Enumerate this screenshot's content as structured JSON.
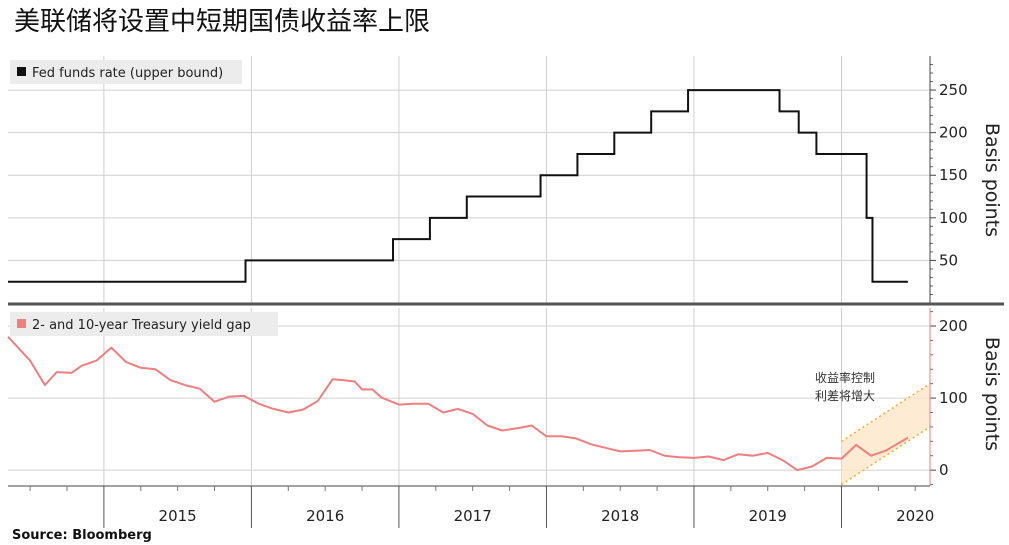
{
  "title": "美联储将设置中短期国债收益率上限",
  "source": "Source:  Bloomberg",
  "colors": {
    "fed_line": "#111111",
    "gap_line": "#f07f7f",
    "band_fill": "#fde7c8",
    "band_edge": "#f0b030",
    "legend_bg": "#ececec"
  },
  "chart_data": [
    {
      "type": "line",
      "ylabel": "Basis points",
      "ylim": [
        0,
        290
      ],
      "yticks": [
        50,
        100,
        150,
        200,
        250
      ],
      "xlim": [
        2014.35,
        2020.6
      ],
      "grid": true,
      "legend": "top-left",
      "series": [
        {
          "name": "Fed funds rate (upper bound)",
          "step": true,
          "x": [
            2014.35,
            2015.96,
            2016.96,
            2017.21,
            2017.46,
            2017.96,
            2018.21,
            2018.46,
            2018.71,
            2018.96,
            2019.58,
            2019.71,
            2019.83,
            2020.17,
            2020.21,
            2020.45
          ],
          "values": [
            25,
            50,
            75,
            100,
            125,
            150,
            175,
            200,
            225,
            250,
            225,
            200,
            175,
            100,
            25,
            25
          ]
        }
      ]
    },
    {
      "type": "line",
      "ylabel": "Basis points",
      "ylim": [
        -22,
        225
      ],
      "yticks": [
        0,
        100,
        200
      ],
      "xlim": [
        2014.35,
        2020.6
      ],
      "xticks": [
        "2015",
        "2016",
        "2017",
        "2018",
        "2019",
        "2020"
      ],
      "grid": true,
      "legend": "top-left",
      "annotation": [
        "收益率控制",
        "利差将增大"
      ],
      "projection_band": {
        "x": [
          2020.0,
          2020.6
        ],
        "lower": [
          -20,
          60
        ],
        "upper": [
          40,
          120
        ]
      },
      "series": [
        {
          "name": "2- and 10-year Treasury yield gap",
          "x": [
            2014.35,
            2014.5,
            2014.6,
            2014.68,
            2014.78,
            2014.85,
            2014.95,
            2015.05,
            2015.15,
            2015.25,
            2015.35,
            2015.45,
            2015.55,
            2015.65,
            2015.75,
            2015.85,
            2015.95,
            2016.05,
            2016.15,
            2016.25,
            2016.35,
            2016.45,
            2016.55,
            2016.62,
            2016.7,
            2016.75,
            2016.82,
            2016.88,
            2017.0,
            2017.1,
            2017.2,
            2017.3,
            2017.4,
            2017.5,
            2017.6,
            2017.7,
            2017.8,
            2017.9,
            2018.0,
            2018.1,
            2018.2,
            2018.3,
            2018.4,
            2018.5,
            2018.6,
            2018.7,
            2018.8,
            2018.9,
            2019.0,
            2019.1,
            2019.2,
            2019.3,
            2019.4,
            2019.5,
            2019.6,
            2019.7,
            2019.8,
            2019.9,
            2020.0,
            2020.1,
            2020.2,
            2020.3,
            2020.45
          ],
          "values": [
            185,
            152,
            118,
            136,
            135,
            145,
            152,
            170,
            150,
            142,
            140,
            125,
            118,
            113,
            95,
            102,
            103,
            92,
            85,
            80,
            84,
            96,
            126,
            125,
            123,
            112,
            112,
            101,
            91,
            92,
            92,
            80,
            85,
            78,
            62,
            55,
            58,
            62,
            47,
            47,
            44,
            36,
            31,
            26,
            27,
            28,
            20,
            18,
            17,
            19,
            14,
            22,
            20,
            24,
            14,
            0,
            5,
            17,
            16,
            35,
            20,
            27,
            45
          ]
        }
      ]
    }
  ]
}
